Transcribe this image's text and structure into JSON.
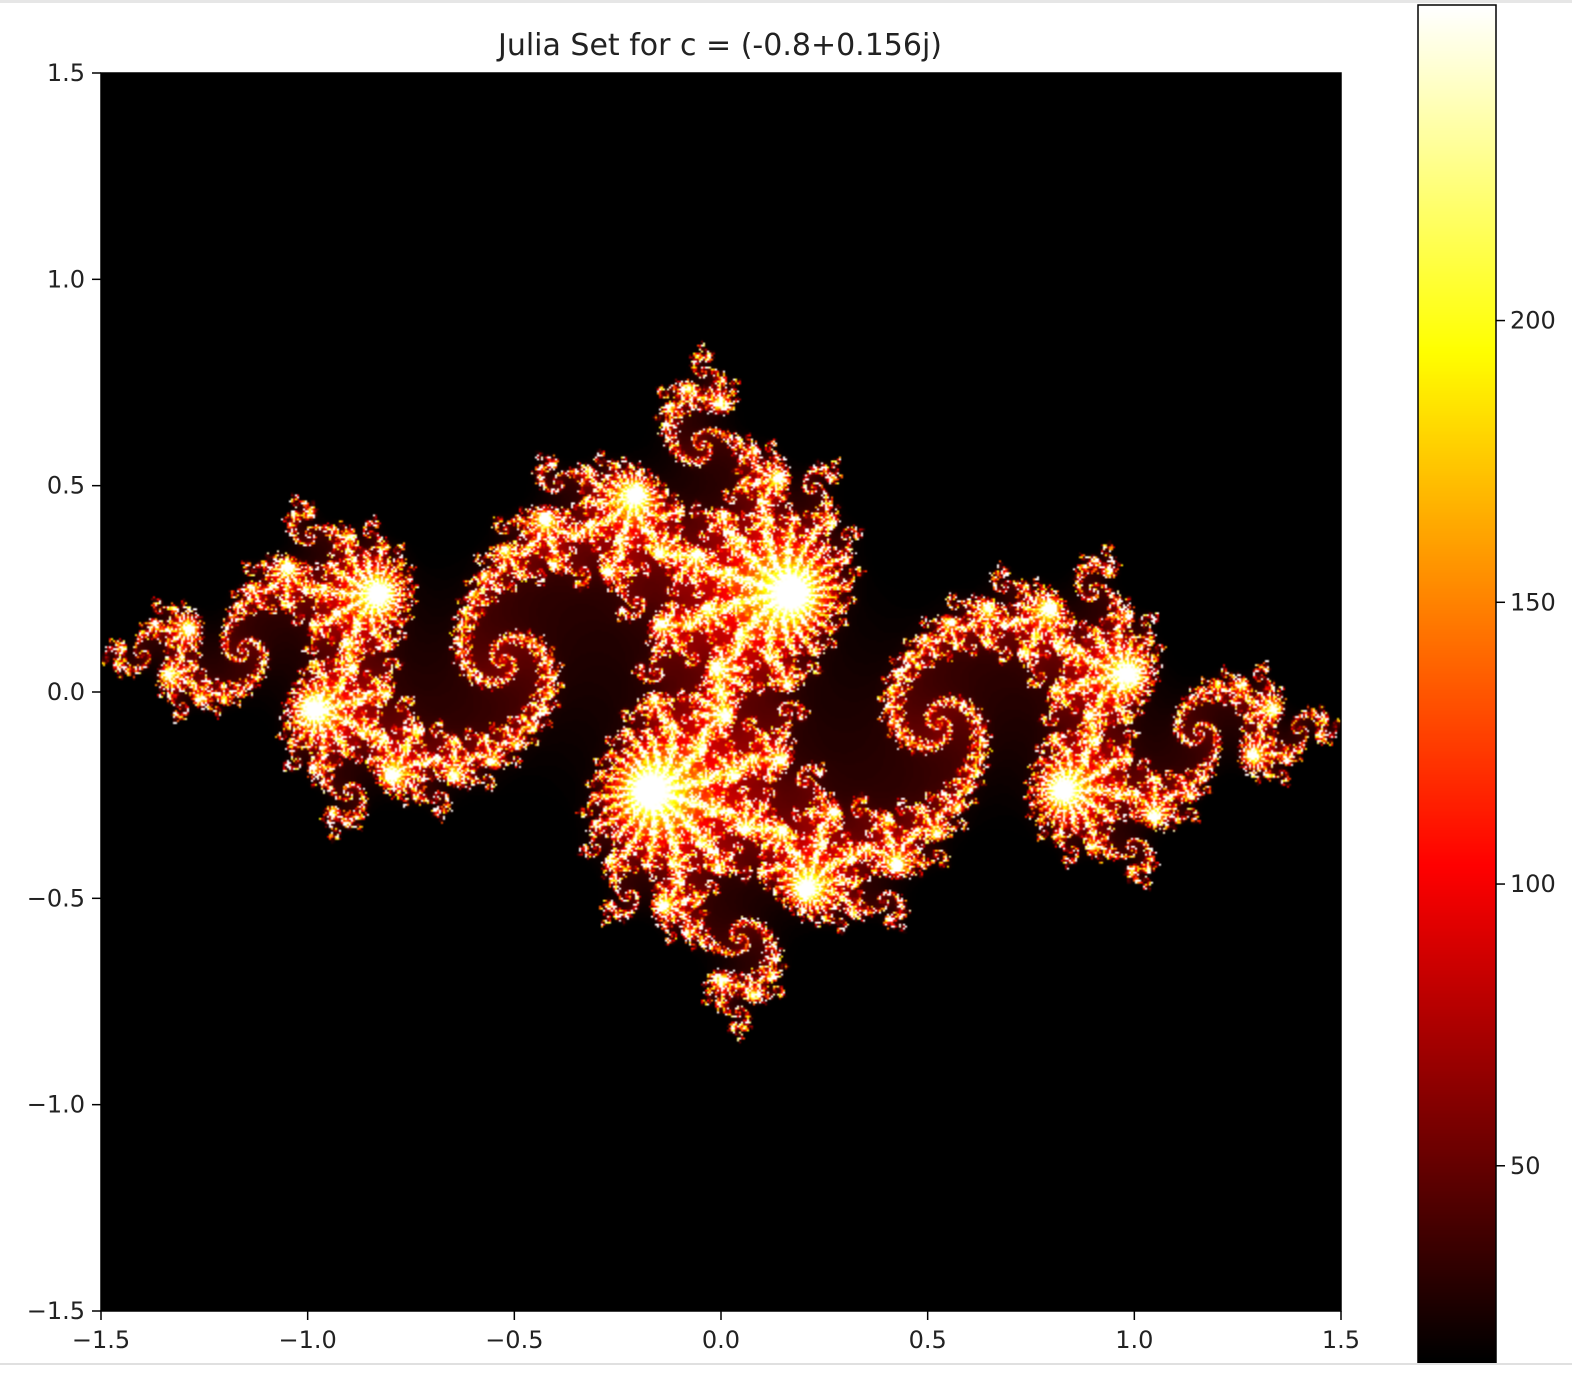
{
  "chart_data": {
    "type": "heatmap",
    "title": "Julia Set for c = (-0.8+0.156j)",
    "xlabel": "",
    "ylabel": "",
    "c": {
      "re": -0.8,
      "im": 0.156
    },
    "xlim": [
      -1.5,
      1.5
    ],
    "ylim": [
      -1.5,
      1.5
    ],
    "xticks": [
      -1.5,
      -1.0,
      -0.5,
      0.0,
      0.5,
      1.0,
      1.5
    ],
    "xtick_labels": [
      "−1.5",
      "−1.0",
      "−0.5",
      "0.0",
      "0.5",
      "1.0",
      "1.5"
    ],
    "yticks": [
      1.5,
      1.0,
      0.5,
      0.0,
      -0.5,
      -1.0,
      -1.5
    ],
    "ytick_labels": [
      "1.5",
      "1.0",
      "0.5",
      "0.0",
      "−0.5",
      "−1.0",
      "−1.5"
    ],
    "colormap": "hot",
    "colorbar": {
      "ticks": [
        200,
        150,
        100,
        50
      ],
      "tick_labels": [
        "200",
        "150",
        "100",
        "50"
      ],
      "range": [
        15,
        256
      ]
    },
    "max_iterations": 256,
    "grid": false
  }
}
